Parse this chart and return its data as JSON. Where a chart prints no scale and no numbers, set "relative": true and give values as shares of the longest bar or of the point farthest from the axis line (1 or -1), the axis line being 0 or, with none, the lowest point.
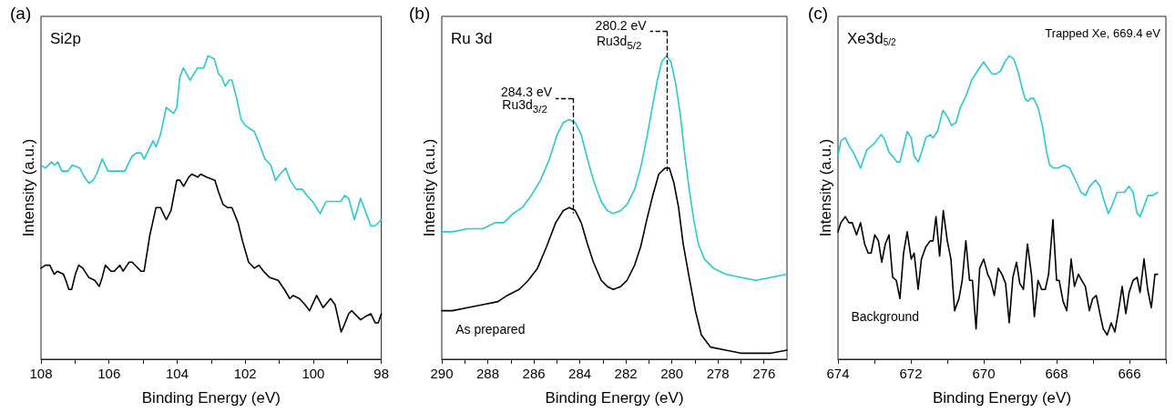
{
  "chart_data": [
    {
      "type": "line",
      "title": "(a)",
      "xlabel": "Binding Energy (eV)",
      "ylabel": "Intensity (a.u.)",
      "relative": true,
      "grid": false,
      "xlim": [
        108,
        98
      ],
      "xticks": [
        108,
        {
          "value": 107,
          "label": null
        },
        106,
        {
          "value": 105,
          "label": null
        },
        104,
        {
          "value": 103,
          "label": null
        },
        102,
        {
          "value": 101,
          "label": null
        },
        100,
        {
          "value": 99,
          "label": null
        },
        98
      ],
      "annotations": [
        "Si2p"
      ],
      "series": [
        {
          "color": "#29c9cc",
          "x": [
            108.0,
            107.87,
            107.69,
            107.61,
            107.5,
            107.39,
            107.21,
            107.08,
            106.86,
            106.72,
            106.59,
            106.46,
            106.37,
            106.2,
            106.03,
            105.85,
            105.68,
            105.54,
            105.32,
            105.19,
            105.06,
            104.97,
            104.84,
            104.71,
            104.62,
            104.49,
            104.32,
            104.1,
            104.01,
            103.92,
            103.82,
            103.62,
            103.4,
            103.22,
            103.09,
            102.91,
            102.78,
            102.69,
            102.59,
            102.47,
            102.39,
            102.25,
            102.12,
            101.99,
            101.73,
            101.55,
            101.42,
            101.25,
            101.11,
            100.98,
            100.81,
            100.68,
            100.5,
            100.32,
            100.19,
            100.02,
            99.8,
            99.62,
            99.45,
            99.32,
            99.19,
            99.08,
            98.96,
            98.79,
            98.61,
            98.44,
            98.31,
            98.18,
            98.0
          ],
          "values": [
            0.64,
            0.63,
            0.65,
            0.64,
            0.65,
            0.62,
            0.62,
            0.64,
            0.63,
            0.6,
            0.58,
            0.59,
            0.61,
            0.66,
            0.62,
            0.62,
            0.62,
            0.62,
            0.67,
            0.68,
            0.68,
            0.66,
            0.69,
            0.72,
            0.7,
            0.74,
            0.83,
            0.81,
            0.83,
            0.93,
            0.96,
            0.92,
            0.96,
            0.96,
            1.0,
            0.99,
            0.94,
            0.93,
            0.9,
            0.92,
            0.92,
            0.86,
            0.79,
            0.77,
            0.75,
            0.7,
            0.66,
            0.64,
            0.59,
            0.61,
            0.63,
            0.59,
            0.56,
            0.56,
            0.54,
            0.52,
            0.48,
            0.52,
            0.52,
            0.52,
            0.52,
            0.54,
            0.53,
            0.46,
            0.53,
            0.48,
            0.44,
            0.44,
            0.46
          ]
        },
        {
          "color": "#000000",
          "x": [
            108.0,
            107.87,
            107.74,
            107.61,
            107.52,
            107.34,
            107.27,
            107.18,
            107.1,
            106.99,
            106.89,
            106.77,
            106.6,
            106.42,
            106.29,
            106.2,
            106.11,
            105.94,
            105.85,
            105.68,
            105.59,
            105.41,
            105.32,
            105.15,
            105.06,
            104.97,
            104.8,
            104.62,
            104.49,
            104.32,
            104.18,
            104.01,
            103.92,
            103.81,
            103.66,
            103.57,
            103.39,
            103.31,
            103.13,
            102.89,
            102.78,
            102.65,
            102.52,
            102.39,
            102.21,
            102.08,
            101.9,
            101.73,
            101.6,
            101.46,
            101.29,
            101.03,
            100.85,
            100.69,
            100.59,
            100.41,
            100.24,
            100.11,
            99.9,
            99.71,
            99.49,
            99.36,
            99.18,
            99.1,
            98.96,
            98.87,
            98.61,
            98.48,
            98.31,
            98.18,
            98.09,
            98.0
          ],
          "values": [
            0.3,
            0.31,
            0.31,
            0.28,
            0.29,
            0.28,
            0.26,
            0.23,
            0.23,
            0.28,
            0.31,
            0.3,
            0.27,
            0.26,
            0.24,
            0.27,
            0.31,
            0.29,
            0.29,
            0.31,
            0.29,
            0.32,
            0.32,
            0.3,
            0.29,
            0.29,
            0.41,
            0.5,
            0.5,
            0.46,
            0.49,
            0.59,
            0.59,
            0.57,
            0.6,
            0.61,
            0.6,
            0.61,
            0.6,
            0.59,
            0.55,
            0.51,
            0.5,
            0.5,
            0.45,
            0.39,
            0.32,
            0.3,
            0.31,
            0.29,
            0.27,
            0.26,
            0.23,
            0.2,
            0.21,
            0.2,
            0.18,
            0.16,
            0.21,
            0.17,
            0.2,
            0.18,
            0.09,
            0.11,
            0.15,
            0.16,
            0.13,
            0.14,
            0.15,
            0.12,
            0.12,
            0.15
          ]
        }
      ]
    },
    {
      "type": "line",
      "title": "(b)",
      "xlabel": "Binding Energy (eV)",
      "ylabel": "Intensity (a.u.)",
      "relative": true,
      "grid": false,
      "xlim": [
        290,
        275
      ],
      "xticks": [
        290,
        {
          "value": 289,
          "label": null
        },
        288,
        {
          "value": 287,
          "label": null
        },
        286,
        {
          "value": 285,
          "label": null
        },
        284,
        {
          "value": 283,
          "label": null
        },
        282,
        {
          "value": 281,
          "label": null
        },
        280,
        {
          "value": 279,
          "label": null
        },
        278,
        {
          "value": 277,
          "label": null
        },
        276
      ],
      "annotations": [
        "Ru 3d",
        {
          "text": "Ru3d$_{3/2}$",
          "x": 284.3,
          "y": 0.79
        },
        {
          "text": "Ru3d$_{5/2}$",
          "x": 280.2,
          "y": 1.0
        }
      ],
      "ref_lines": [
        {
          "axis": "x",
          "value": 284.3,
          "label": "284.3 eV",
          "line_style": "dashed",
          "color": "#000000"
        },
        {
          "axis": "x",
          "value": 280.2,
          "label": "280.2 eV",
          "line_style": "dashed",
          "color": "#000000"
        }
      ],
      "series": [
        {
          "color": "#29c9cc",
          "x": [
            290.0,
            289.54,
            288.88,
            288.22,
            287.96,
            287.69,
            287.3,
            286.9,
            286.5,
            286.11,
            285.71,
            285.32,
            284.99,
            284.72,
            284.46,
            284.2,
            283.94,
            283.67,
            283.41,
            283.07,
            282.81,
            282.55,
            282.22,
            281.95,
            281.62,
            281.36,
            281.09,
            280.83,
            280.63,
            280.44,
            280.24,
            280.04,
            279.84,
            279.64,
            279.45,
            279.25,
            279.05,
            278.85,
            278.59,
            278.19,
            277.66,
            277.01,
            276.35,
            275.69,
            275.0
          ],
          "values": [
            0.42,
            0.42,
            0.43,
            0.43,
            0.44,
            0.45,
            0.45,
            0.48,
            0.5,
            0.54,
            0.59,
            0.66,
            0.74,
            0.78,
            0.79,
            0.78,
            0.74,
            0.66,
            0.59,
            0.52,
            0.49,
            0.48,
            0.49,
            0.51,
            0.56,
            0.63,
            0.73,
            0.84,
            0.92,
            0.98,
            1.0,
            0.98,
            0.91,
            0.81,
            0.68,
            0.56,
            0.46,
            0.38,
            0.33,
            0.3,
            0.28,
            0.27,
            0.26,
            0.27,
            0.28
          ]
        },
        {
          "name": "As prepared",
          "color": "#000000",
          "x": [
            290.0,
            289.54,
            288.88,
            288.22,
            287.56,
            287.16,
            286.64,
            286.24,
            285.84,
            285.45,
            285.05,
            284.72,
            284.46,
            284.2,
            283.94,
            283.67,
            283.41,
            283.07,
            282.81,
            282.55,
            282.22,
            281.95,
            281.62,
            281.36,
            281.09,
            280.83,
            280.57,
            280.3,
            280.11,
            279.91,
            279.71,
            279.51,
            279.25,
            278.98,
            278.72,
            278.32,
            277.66,
            277.01,
            276.35,
            275.69,
            275.0
          ],
          "values": [
            0.16,
            0.16,
            0.17,
            0.18,
            0.19,
            0.21,
            0.23,
            0.26,
            0.3,
            0.37,
            0.45,
            0.49,
            0.5,
            0.49,
            0.45,
            0.38,
            0.32,
            0.26,
            0.24,
            0.23,
            0.24,
            0.26,
            0.31,
            0.37,
            0.46,
            0.54,
            0.61,
            0.63,
            0.63,
            0.58,
            0.5,
            0.38,
            0.27,
            0.16,
            0.08,
            0.04,
            0.03,
            0.02,
            0.02,
            0.02,
            0.03
          ]
        }
      ]
    },
    {
      "type": "line",
      "title": "(c)",
      "xlabel": "Binding Energy (eV)",
      "ylabel": "Intensity (a.u.)",
      "relative": true,
      "grid": false,
      "xlim": [
        674,
        665
      ],
      "xticks": [
        674,
        {
          "value": 673,
          "label": null
        },
        672,
        {
          "value": 671,
          "label": null
        },
        670,
        {
          "value": 669,
          "label": null
        },
        668,
        {
          "value": 667,
          "label": null
        },
        666,
        {
          "value": 665,
          "label": null
        }
      ],
      "annotations": [
        "Xe3d$_{5/2}$",
        "Trapped Xe, 669.4 eV"
      ],
      "series": [
        {
          "color": "#29c9cc",
          "x": [
            674.0,
            673.92,
            673.8,
            673.68,
            673.57,
            673.38,
            673.21,
            673.01,
            672.82,
            672.74,
            672.59,
            672.5,
            672.38,
            672.3,
            672.1,
            671.99,
            671.91,
            671.8,
            671.71,
            671.59,
            671.47,
            671.39,
            671.27,
            671.12,
            671.0,
            670.88,
            670.76,
            670.64,
            670.48,
            670.33,
            670.17,
            670.0,
            669.89,
            669.77,
            669.66,
            669.54,
            669.42,
            669.3,
            669.18,
            669.06,
            668.94,
            668.87,
            668.79,
            668.71,
            668.63,
            668.51,
            668.39,
            668.27,
            668.19,
            668.08,
            667.96,
            667.8,
            667.64,
            667.56,
            667.44,
            667.33,
            667.21,
            667.09,
            666.93,
            666.81,
            666.69,
            666.58,
            666.5,
            666.34,
            666.14,
            666.01,
            665.9,
            665.79,
            665.71,
            665.55,
            665.49,
            665.36,
            665.23
          ],
          "values": [
            0.67,
            0.72,
            0.73,
            0.7,
            0.68,
            0.63,
            0.69,
            0.71,
            0.74,
            0.73,
            0.68,
            0.67,
            0.65,
            0.65,
            0.75,
            0.73,
            0.67,
            0.65,
            0.68,
            0.73,
            0.74,
            0.73,
            0.75,
            0.82,
            0.8,
            0.77,
            0.78,
            0.83,
            0.87,
            0.92,
            0.95,
            0.98,
            0.96,
            0.94,
            0.94,
            0.95,
            0.98,
            1.0,
            0.99,
            0.95,
            0.89,
            0.86,
            0.85,
            0.86,
            0.86,
            0.83,
            0.77,
            0.68,
            0.64,
            0.63,
            0.63,
            0.64,
            0.63,
            0.61,
            0.58,
            0.55,
            0.54,
            0.57,
            0.59,
            0.57,
            0.52,
            0.48,
            0.5,
            0.55,
            0.55,
            0.57,
            0.55,
            0.48,
            0.47,
            0.52,
            0.54,
            0.54,
            0.55
          ]
        },
        {
          "name": "Background",
          "color": "#000000",
          "x": [
            674.0,
            673.92,
            673.8,
            673.7,
            673.61,
            673.49,
            673.38,
            673.27,
            673.17,
            673.09,
            672.99,
            672.89,
            672.8,
            672.7,
            672.6,
            672.5,
            672.4,
            672.3,
            672.2,
            672.1,
            671.99,
            671.91,
            671.8,
            671.71,
            671.59,
            671.47,
            671.39,
            671.31,
            671.21,
            671.11,
            671.0,
            670.9,
            670.8,
            670.68,
            670.59,
            670.49,
            670.39,
            670.31,
            670.21,
            670.11,
            670.0,
            669.89,
            669.81,
            669.71,
            669.6,
            669.5,
            669.4,
            669.3,
            669.2,
            669.1,
            669.01,
            668.91,
            668.8,
            668.69,
            668.61,
            668.51,
            668.41,
            668.31,
            668.22,
            668.1,
            668.0,
            667.93,
            667.82,
            667.72,
            667.6,
            667.51,
            667.4,
            667.31,
            667.21,
            667.1,
            667.01,
            666.91,
            666.81,
            666.72,
            666.61,
            666.5,
            666.4,
            666.3,
            666.2,
            666.1,
            666.01,
            665.9,
            665.79,
            665.71,
            665.6,
            665.5,
            665.4,
            665.3,
            665.23
          ],
          "values": [
            0.42,
            0.45,
            0.47,
            0.45,
            0.45,
            0.41,
            0.45,
            0.38,
            0.35,
            0.35,
            0.41,
            0.39,
            0.32,
            0.38,
            0.41,
            0.27,
            0.26,
            0.2,
            0.35,
            0.42,
            0.33,
            0.35,
            0.23,
            0.33,
            0.37,
            0.39,
            0.39,
            0.47,
            0.34,
            0.49,
            0.39,
            0.33,
            0.16,
            0.2,
            0.26,
            0.39,
            0.26,
            0.26,
            0.1,
            0.3,
            0.33,
            0.28,
            0.26,
            0.21,
            0.3,
            0.28,
            0.25,
            0.12,
            0.27,
            0.32,
            0.25,
            0.23,
            0.38,
            0.28,
            0.14,
            0.26,
            0.23,
            0.23,
            0.28,
            0.46,
            0.26,
            0.26,
            0.19,
            0.16,
            0.33,
            0.24,
            0.28,
            0.26,
            0.24,
            0.16,
            0.2,
            0.21,
            0.15,
            0.1,
            0.08,
            0.12,
            0.09,
            0.16,
            0.24,
            0.15,
            0.22,
            0.26,
            0.27,
            0.22,
            0.33,
            0.23,
            0.17,
            0.28,
            0.28
          ]
        }
      ]
    }
  ]
}
